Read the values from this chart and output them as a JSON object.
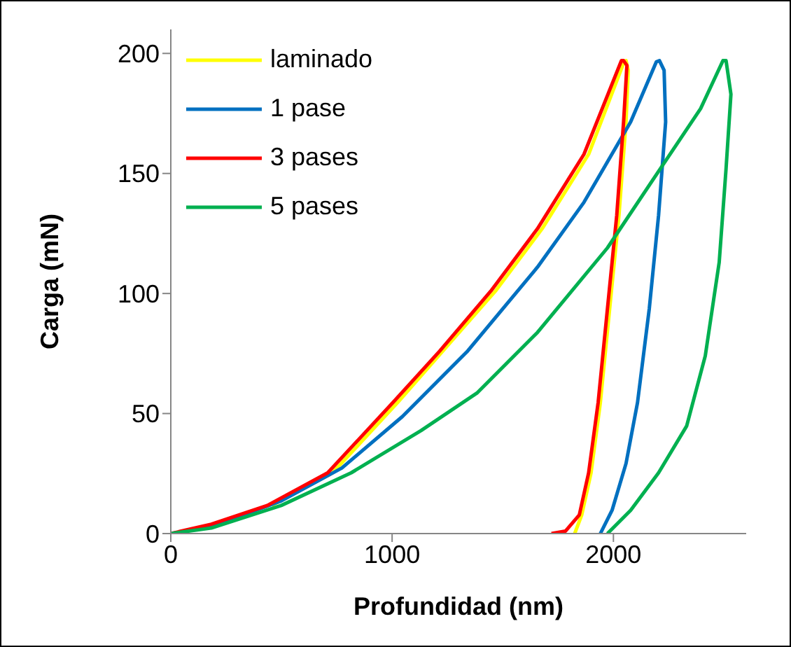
{
  "chart_data": {
    "type": "line",
    "xlabel": "Profundidad (nm)",
    "ylabel": "Carga (mN)",
    "xlim": [
      0,
      2600
    ],
    "xticks": [
      0,
      1000,
      2000
    ],
    "ylim": [
      0,
      210
    ],
    "yticks": [
      0,
      50,
      100,
      150,
      200
    ],
    "grid": false,
    "legend": "top left",
    "marker": "none",
    "line_style": "solid",
    "series": [
      {
        "name": "laminado",
        "color": "#ffff00",
        "x": [
          457,
          731,
          1025,
          1467,
          1678,
          1888,
          2046,
          2057,
          2067,
          2057,
          2025,
          1983,
          1941,
          1899,
          1857,
          1825
        ],
        "values": [
          11.7,
          25.3,
          54.6,
          101,
          127,
          158,
          196,
          197,
          193,
          171.5,
          132.5,
          93.6,
          54.6,
          25.3,
          7.8,
          0
        ]
      },
      {
        "name": "1 pase",
        "color": "#0070c0",
        "x": [
          0,
          183,
          499,
          773,
          1046,
          1341,
          1657,
          1867,
          2078,
          2194,
          2208,
          2229,
          2236,
          2204,
          2162,
          2109,
          2057,
          1994,
          1941
        ],
        "values": [
          0,
          2.9,
          13.6,
          27.3,
          48.7,
          76,
          111,
          138,
          171.5,
          196.5,
          197,
          193,
          171.5,
          132.5,
          93.6,
          54.6,
          29.2,
          9.7,
          0
        ]
      },
      {
        "name": "3 pases",
        "color": "#ff0000",
        "x": [
          0,
          183,
          436,
          709,
          1004,
          1215,
          1446,
          1657,
          1867,
          2036,
          2046,
          2061,
          2046,
          2015,
          1973,
          1931,
          1888,
          1846,
          1783,
          1720
        ],
        "values": [
          0,
          3.9,
          11.7,
          25.3,
          54.6,
          76,
          101,
          127,
          158,
          197,
          197,
          195,
          171.5,
          132.5,
          93.6,
          54.6,
          25.3,
          7.8,
          1,
          0
        ]
      },
      {
        "name": "5 pases",
        "color": "#00b050",
        "x": [
          0,
          183,
          499,
          815,
          1131,
          1383,
          1657,
          1973,
          2183,
          2394,
          2495,
          2509,
          2531,
          2509,
          2478,
          2415,
          2331,
          2204,
          2078,
          1973
        ],
        "values": [
          0,
          2.3,
          11.7,
          25.3,
          42.9,
          58.5,
          83.8,
          119,
          148,
          177,
          197,
          197,
          183,
          152,
          113,
          74,
          44.8,
          25.3,
          9.7,
          0
        ]
      }
    ]
  }
}
